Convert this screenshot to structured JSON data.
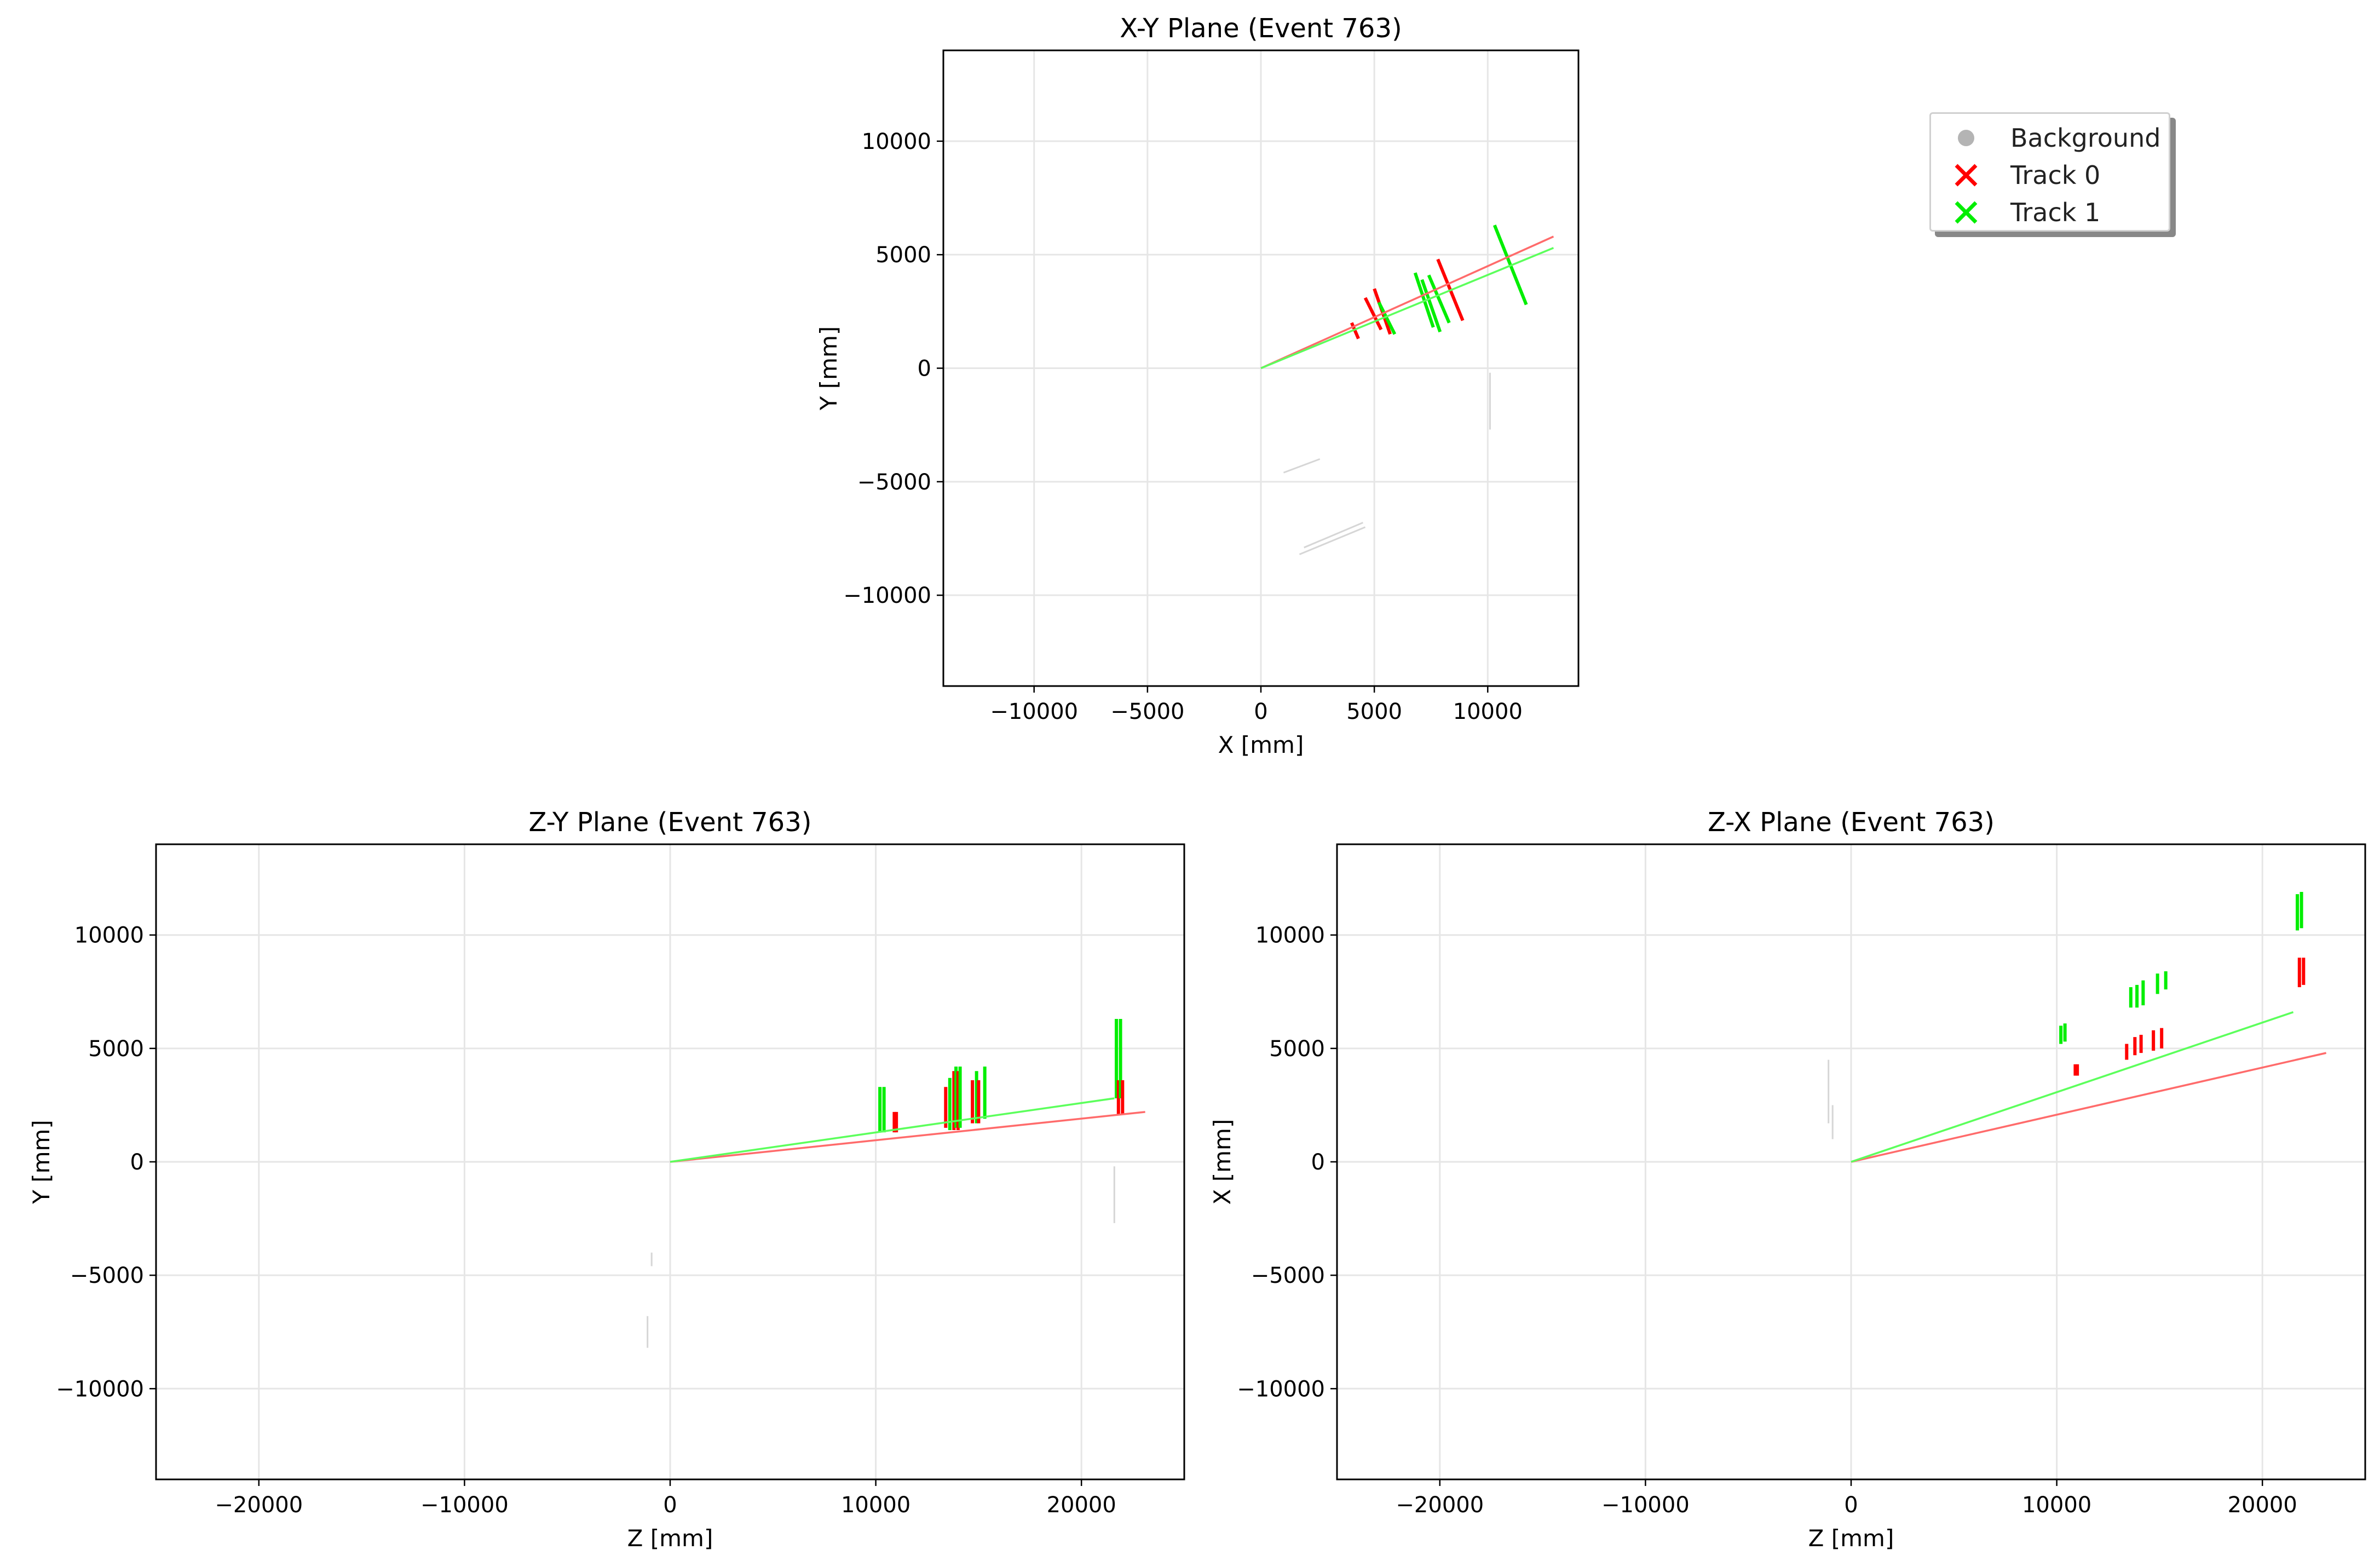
{
  "colors": {
    "background": "#b4b4b4",
    "track0": "#ff0000",
    "track1": "#00ee00",
    "track0_line": "#ff6b6b",
    "track1_line": "#5cff5c"
  },
  "legend": {
    "placement": "upper-right",
    "entries": [
      {
        "label": "Background",
        "marker": "circle",
        "color": "#b4b4b4"
      },
      {
        "label": "Track 0",
        "marker": "x",
        "color": "#ff0000"
      },
      {
        "label": "Track 1",
        "marker": "x",
        "color": "#00ee00"
      }
    ]
  },
  "chart_data": [
    {
      "id": "xy",
      "type": "line",
      "title": "X-Y Plane (Event 763)",
      "xlabel": "X [mm]",
      "ylabel": "Y [mm]",
      "xlim": [
        -14000,
        14000
      ],
      "ylim": [
        -14000,
        14000
      ],
      "xticks": [
        -10000,
        -5000,
        0,
        5000,
        10000
      ],
      "yticks": [
        -10000,
        -5000,
        0,
        5000,
        10000
      ],
      "xtick_labels": [
        "−10000",
        "−5000",
        "0",
        "5000",
        "10000"
      ],
      "ytick_labels": [
        "−10000",
        "−5000",
        "0",
        "5000",
        "10000"
      ],
      "grid": true,
      "tracks": [
        {
          "name": "Track 0",
          "line": [
            [
              0,
              0
            ],
            [
              12900,
              5800
            ]
          ]
        },
        {
          "name": "Track 1",
          "line": [
            [
              0,
              0
            ],
            [
              12900,
              5300
            ]
          ]
        }
      ],
      "hits": [
        {
          "track": 0,
          "p1": [
            4000,
            2000
          ],
          "p2": [
            4300,
            1300
          ]
        },
        {
          "track": 0,
          "p1": [
            4600,
            3100
          ],
          "p2": [
            5300,
            1700
          ]
        },
        {
          "track": 0,
          "p1": [
            5000,
            3500
          ],
          "p2": [
            5700,
            1500
          ]
        },
        {
          "track": 0,
          "p1": [
            7800,
            4800
          ],
          "p2": [
            8900,
            2100
          ]
        },
        {
          "track": 1,
          "p1": [
            5200,
            2900
          ],
          "p2": [
            5900,
            1500
          ]
        },
        {
          "track": 1,
          "p1": [
            6800,
            4200
          ],
          "p2": [
            7600,
            1800
          ]
        },
        {
          "track": 1,
          "p1": [
            7100,
            3900
          ],
          "p2": [
            7900,
            1600
          ]
        },
        {
          "track": 1,
          "p1": [
            7400,
            4100
          ],
          "p2": [
            8300,
            2000
          ]
        },
        {
          "track": 1,
          "p1": [
            10300,
            6300
          ],
          "p2": [
            11700,
            2800
          ]
        },
        {
          "track": "bg",
          "p1": [
            1000,
            -4600
          ],
          "p2": [
            2600,
            -4000
          ]
        },
        {
          "track": "bg",
          "p1": [
            1700,
            -8200
          ],
          "p2": [
            4600,
            -7000
          ]
        },
        {
          "track": "bg",
          "p1": [
            1900,
            -7900
          ],
          "p2": [
            4500,
            -6800
          ]
        },
        {
          "track": "bg",
          "p1": [
            10100,
            -200
          ],
          "p2": [
            10100,
            -2700
          ]
        }
      ]
    },
    {
      "id": "zy",
      "type": "line",
      "title": "Z-Y Plane (Event 763)",
      "xlabel": "Z [mm]",
      "ylabel": "Y [mm]",
      "xlim": [
        -25000,
        25000
      ],
      "ylim": [
        -14000,
        14000
      ],
      "xticks": [
        -20000,
        -10000,
        0,
        10000,
        20000
      ],
      "yticks": [
        -10000,
        -5000,
        0,
        5000,
        10000
      ],
      "xtick_labels": [
        "−20000",
        "−10000",
        "0",
        "10000",
        "20000"
      ],
      "ytick_labels": [
        "−10000",
        "−5000",
        "0",
        "5000",
        "10000"
      ],
      "grid": true,
      "tracks": [
        {
          "name": "Track 0",
          "line": [
            [
              0,
              0
            ],
            [
              23100,
              2200
            ]
          ]
        },
        {
          "name": "Track 1",
          "line": [
            [
              0,
              0
            ],
            [
              21600,
              2800
            ]
          ]
        }
      ],
      "hits": [
        {
          "track": 1,
          "p1": [
            10200,
            3300
          ],
          "p2": [
            10200,
            1300
          ]
        },
        {
          "track": 1,
          "p1": [
            10400,
            3300
          ],
          "p2": [
            10400,
            1300
          ]
        },
        {
          "track": 0,
          "p1": [
            10900,
            2200
          ],
          "p2": [
            10900,
            1300
          ]
        },
        {
          "track": 0,
          "p1": [
            11000,
            2200
          ],
          "p2": [
            11000,
            1300
          ]
        },
        {
          "track": 0,
          "p1": [
            13400,
            3300
          ],
          "p2": [
            13400,
            1500
          ]
        },
        {
          "track": 1,
          "p1": [
            13600,
            3700
          ],
          "p2": [
            13600,
            1400
          ]
        },
        {
          "track": 0,
          "p1": [
            13800,
            4000
          ],
          "p2": [
            13800,
            1400
          ]
        },
        {
          "track": 1,
          "p1": [
            13900,
            4200
          ],
          "p2": [
            13900,
            1500
          ]
        },
        {
          "track": 0,
          "p1": [
            14000,
            4000
          ],
          "p2": [
            14000,
            1400
          ]
        },
        {
          "track": 1,
          "p1": [
            14100,
            4200
          ],
          "p2": [
            14100,
            1500
          ]
        },
        {
          "track": 0,
          "p1": [
            14700,
            3600
          ],
          "p2": [
            14700,
            1700
          ]
        },
        {
          "track": 1,
          "p1": [
            14900,
            4000
          ],
          "p2": [
            14900,
            1700
          ]
        },
        {
          "track": 0,
          "p1": [
            15000,
            3600
          ],
          "p2": [
            15000,
            1700
          ]
        },
        {
          "track": 1,
          "p1": [
            15300,
            4200
          ],
          "p2": [
            15300,
            1900
          ]
        },
        {
          "track": 1,
          "p1": [
            21700,
            6300
          ],
          "p2": [
            21700,
            2800
          ]
        },
        {
          "track": 0,
          "p1": [
            21800,
            3600
          ],
          "p2": [
            21800,
            2100
          ]
        },
        {
          "track": 1,
          "p1": [
            21900,
            6300
          ],
          "p2": [
            21900,
            2800
          ]
        },
        {
          "track": 0,
          "p1": [
            22000,
            3600
          ],
          "p2": [
            22000,
            2100
          ]
        },
        {
          "track": "bg",
          "p1": [
            -900,
            -4000
          ],
          "p2": [
            -900,
            -4600
          ]
        },
        {
          "track": "bg",
          "p1": [
            -1100,
            -6800
          ],
          "p2": [
            -1100,
            -8200
          ]
        },
        {
          "track": "bg",
          "p1": [
            21600,
            -200
          ],
          "p2": [
            21600,
            -2700
          ]
        }
      ]
    },
    {
      "id": "zx",
      "type": "line",
      "title": "Z-X Plane (Event 763)",
      "xlabel": "Z [mm]",
      "ylabel": "X [mm]",
      "xlim": [
        -25000,
        25000
      ],
      "ylim": [
        -14000,
        14000
      ],
      "xticks": [
        -20000,
        -10000,
        0,
        10000,
        20000
      ],
      "yticks": [
        -10000,
        -5000,
        0,
        5000,
        10000
      ],
      "xtick_labels": [
        "−20000",
        "−10000",
        "0",
        "10000",
        "20000"
      ],
      "ytick_labels": [
        "−10000",
        "−5000",
        "0",
        "5000",
        "10000"
      ],
      "grid": true,
      "tracks": [
        {
          "name": "Track 0",
          "line": [
            [
              0,
              0
            ],
            [
              23100,
              4800
            ]
          ]
        },
        {
          "name": "Track 1",
          "line": [
            [
              0,
              0
            ],
            [
              21500,
              6600
            ]
          ]
        }
      ],
      "hits": [
        {
          "track": 1,
          "p1": [
            10200,
            6000
          ],
          "p2": [
            10200,
            5200
          ]
        },
        {
          "track": 1,
          "p1": [
            10400,
            6100
          ],
          "p2": [
            10400,
            5300
          ]
        },
        {
          "track": 0,
          "p1": [
            10900,
            4300
          ],
          "p2": [
            10900,
            3800
          ]
        },
        {
          "track": 0,
          "p1": [
            11000,
            4300
          ],
          "p2": [
            11000,
            3800
          ]
        },
        {
          "track": 0,
          "p1": [
            13400,
            5200
          ],
          "p2": [
            13400,
            4500
          ]
        },
        {
          "track": 1,
          "p1": [
            13600,
            7700
          ],
          "p2": [
            13600,
            6800
          ]
        },
        {
          "track": 0,
          "p1": [
            13800,
            5500
          ],
          "p2": [
            13800,
            4700
          ]
        },
        {
          "track": 1,
          "p1": [
            13900,
            7800
          ],
          "p2": [
            13900,
            6800
          ]
        },
        {
          "track": 0,
          "p1": [
            14100,
            5600
          ],
          "p2": [
            14100,
            4800
          ]
        },
        {
          "track": 1,
          "p1": [
            14200,
            8000
          ],
          "p2": [
            14200,
            6900
          ]
        },
        {
          "track": 0,
          "p1": [
            14700,
            5800
          ],
          "p2": [
            14700,
            4900
          ]
        },
        {
          "track": 1,
          "p1": [
            14900,
            8300
          ],
          "p2": [
            14900,
            7400
          ]
        },
        {
          "track": 0,
          "p1": [
            15100,
            5900
          ],
          "p2": [
            15100,
            5000
          ]
        },
        {
          "track": 1,
          "p1": [
            15300,
            8400
          ],
          "p2": [
            15300,
            7600
          ]
        },
        {
          "track": 1,
          "p1": [
            21700,
            11800
          ],
          "p2": [
            21700,
            10200
          ]
        },
        {
          "track": 0,
          "p1": [
            21800,
            9000
          ],
          "p2": [
            21800,
            7700
          ]
        },
        {
          "track": 1,
          "p1": [
            21900,
            11900
          ],
          "p2": [
            21900,
            10300
          ]
        },
        {
          "track": 0,
          "p1": [
            22000,
            9000
          ],
          "p2": [
            22000,
            7800
          ]
        },
        {
          "track": "bg",
          "p1": [
            -1100,
            4500
          ],
          "p2": [
            -1100,
            1700
          ]
        },
        {
          "track": "bg",
          "p1": [
            -900,
            2500
          ],
          "p2": [
            -900,
            1000
          ]
        }
      ]
    }
  ]
}
